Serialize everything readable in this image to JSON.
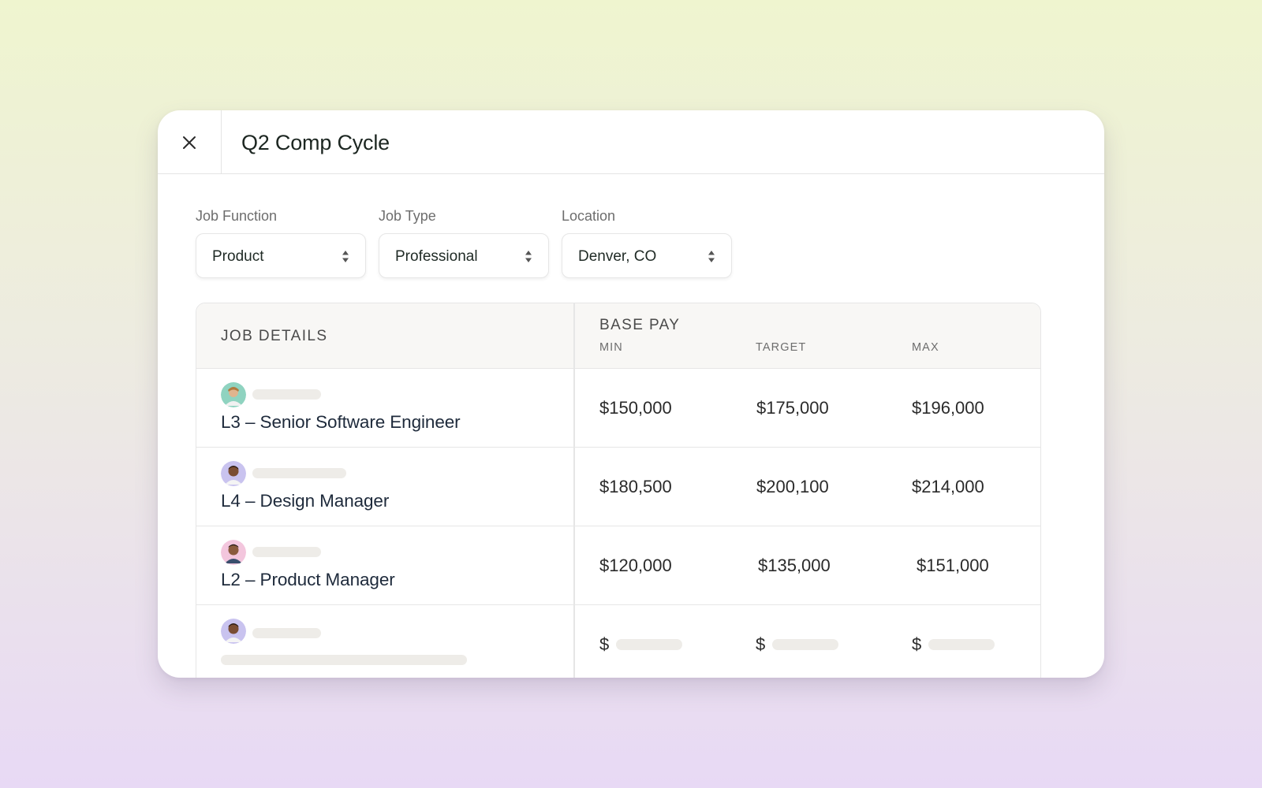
{
  "dialog": {
    "title": "Q2 Comp Cycle"
  },
  "filters": [
    {
      "label": "Job Function",
      "value": "Product"
    },
    {
      "label": "Job Type",
      "value": "Professional"
    },
    {
      "label": "Location",
      "value": "Denver, CO"
    }
  ],
  "table": {
    "headers": {
      "job_details": "JOB DETAILS",
      "base_pay": "BASE PAY",
      "min": "MIN",
      "target": "TARGET",
      "max": "MAX"
    },
    "rows": [
      {
        "title": "L3 – Senior Software Engineer",
        "min": "$150,000",
        "target": "$175,000",
        "max": "$196,000"
      },
      {
        "title": "L4 – Design Manager",
        "min": "$180,500",
        "target": "$200,100",
        "max": "$214,000"
      },
      {
        "title": "L2 – Product Manager",
        "min": "$120,000",
        "target": "$135,000",
        "max": "$151,000"
      },
      {
        "title": "",
        "currency": "$"
      }
    ]
  },
  "colors": {
    "accent_text": "#1c2621",
    "border": "#e6e6e6",
    "header_bg": "#f8f7f5",
    "placeholder": "#eeece8"
  }
}
